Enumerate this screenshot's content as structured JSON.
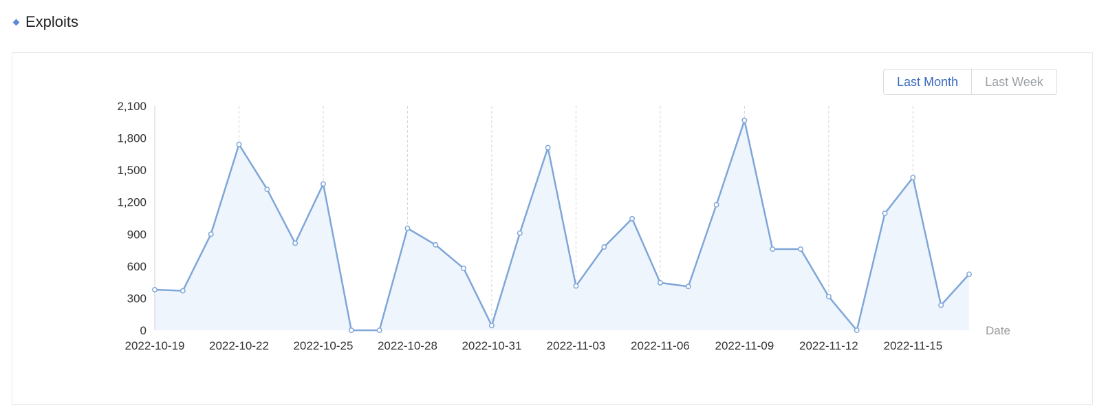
{
  "section": {
    "title": "Exploits"
  },
  "controls": {
    "last_month_label": "Last Month",
    "last_week_label": "Last Week",
    "active": "last_month"
  },
  "colors": {
    "accent": "#5b8ad6",
    "line": "#7fa6d8",
    "area": "#eef5fd",
    "active_button": "#3a6bbf"
  },
  "chart_data": {
    "type": "area",
    "title": "",
    "xlabel": "Date",
    "ylabel": "",
    "ylim": [
      0,
      2100
    ],
    "y_ticks": [
      0,
      300,
      600,
      900,
      1200,
      1500,
      1800,
      2100
    ],
    "y_tick_labels": [
      "0",
      "300",
      "600",
      "900",
      "1,200",
      "1,500",
      "1,800",
      "2,100"
    ],
    "x_tick_labels": [
      "2022-10-19",
      "2022-10-22",
      "2022-10-25",
      "2022-10-28",
      "2022-10-31",
      "2022-11-03",
      "2022-11-06",
      "2022-11-09",
      "2022-11-12",
      "2022-11-15"
    ],
    "grid": "vertical dashed at labeled dates",
    "x": [
      "2022-10-19",
      "2022-10-20",
      "2022-10-21",
      "2022-10-22",
      "2022-10-23",
      "2022-10-24",
      "2022-10-25",
      "2022-10-26",
      "2022-10-27",
      "2022-10-28",
      "2022-10-29",
      "2022-10-30",
      "2022-10-31",
      "2022-11-01",
      "2022-11-02",
      "2022-11-03",
      "2022-11-04",
      "2022-11-05",
      "2022-11-06",
      "2022-11-07",
      "2022-11-08",
      "2022-11-09",
      "2022-11-10",
      "2022-11-11",
      "2022-11-12",
      "2022-11-13",
      "2022-11-14",
      "2022-11-15",
      "2022-11-16",
      "2022-11-17"
    ],
    "series": [
      {
        "values": [
          380,
          370,
          900,
          1740,
          1320,
          815,
          1370,
          0,
          0,
          955,
          800,
          580,
          45,
          910,
          1710,
          415,
          780,
          1045,
          445,
          410,
          1175,
          1965,
          760,
          760,
          315,
          0,
          1095,
          1430,
          235,
          525
        ]
      }
    ]
  }
}
